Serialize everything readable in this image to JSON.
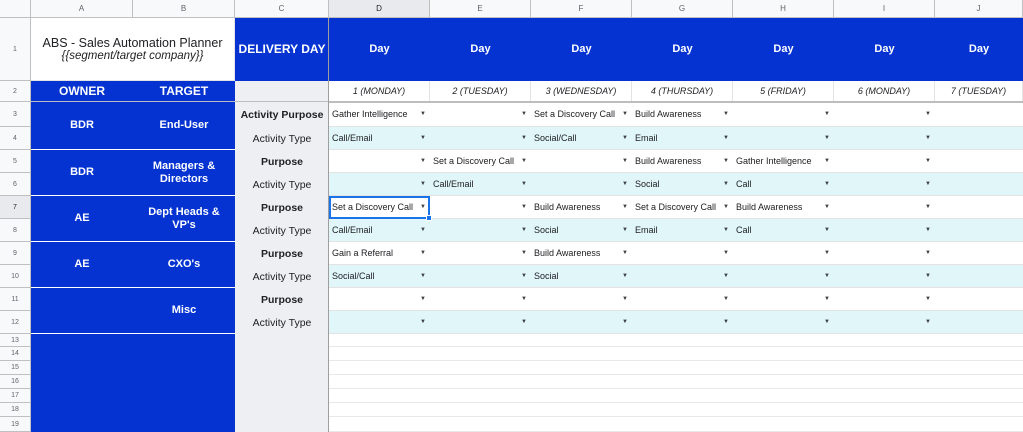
{
  "columns": [
    "A",
    "B",
    "C",
    "D",
    "E",
    "F",
    "G",
    "H",
    "I",
    "J"
  ],
  "rows": [
    "1",
    "2",
    "3",
    "4",
    "5",
    "6",
    "7",
    "8",
    "9",
    "10",
    "11",
    "12",
    "13",
    "14",
    "15",
    "16",
    "17",
    "18",
    "19"
  ],
  "title": {
    "line1": "ABS  - Sales Automation Planner",
    "line2": "{{segment/target company}}"
  },
  "headers": {
    "delivery_day": "DELIVERY DAY",
    "owner": "OWNER",
    "target": "TARGET"
  },
  "days": [
    {
      "label": "Day",
      "sub": "1 (MONDAY)"
    },
    {
      "label": "Day",
      "sub": "2 (TUESDAY)"
    },
    {
      "label": "Day",
      "sub": "3 (WEDNESDAY)"
    },
    {
      "label": "Day",
      "sub": "4 (THURSDAY)"
    },
    {
      "label": "Day",
      "sub": "5 (FRIDAY)"
    },
    {
      "label": "Day",
      "sub": "6 (MONDAY)"
    },
    {
      "label": "Day",
      "sub": "7 (TUESDAY)"
    }
  ],
  "groups": [
    {
      "owner": "BDR",
      "target": "End-User",
      "purpose_label": "Activity Purpose",
      "type_label": "Activity Type",
      "purpose": [
        "Gather Intelligence",
        "",
        "Set a Discovery Call",
        "Build Awareness",
        "",
        "",
        ""
      ],
      "type": [
        "Call/Email",
        "",
        "Social/Call",
        "Email",
        "",
        "",
        ""
      ]
    },
    {
      "owner": "BDR",
      "target": "Managers & Directors",
      "purpose_label": "Purpose",
      "type_label": "Activity Type",
      "purpose": [
        "",
        "Set a Discovery Call",
        "",
        "Build Awareness",
        "Gather Intelligence",
        "",
        ""
      ],
      "type": [
        "",
        "Call/Email",
        "",
        "Social",
        "Call",
        "",
        ""
      ]
    },
    {
      "owner": "AE",
      "target": "Dept Heads & VP's",
      "purpose_label": "Purpose",
      "type_label": "Activity Type",
      "purpose": [
        "Set a Discovery Call",
        "",
        "Build Awareness",
        "Set a Discovery Call",
        "Build Awareness",
        "",
        ""
      ],
      "type": [
        "Call/Email",
        "",
        "Social",
        "Email",
        "Call",
        "",
        ""
      ]
    },
    {
      "owner": "AE",
      "target": "CXO's",
      "purpose_label": "Purpose",
      "type_label": "Activity Type",
      "purpose": [
        "Gain a Referral",
        "",
        "Build Awareness",
        "",
        "",
        "",
        ""
      ],
      "type": [
        "Social/Call",
        "",
        "Social",
        "",
        "",
        "",
        ""
      ]
    },
    {
      "owner": "",
      "target": "Misc",
      "purpose_label": "Purpose",
      "type_label": "Activity Type",
      "purpose": [
        "",
        "",
        "",
        "",
        "",
        "",
        ""
      ],
      "type": [
        "",
        "",
        "",
        "",
        "",
        "",
        ""
      ]
    }
  ],
  "dropdown_icon": "triangle-down-icon",
  "dropdown_cols": [
    true,
    true,
    true,
    true,
    true,
    true,
    false
  ],
  "colors": {
    "blue": "#0433d1",
    "cyan": "#e0f6f8",
    "gray": "#eeeff2",
    "selection": "#1a73e8"
  }
}
